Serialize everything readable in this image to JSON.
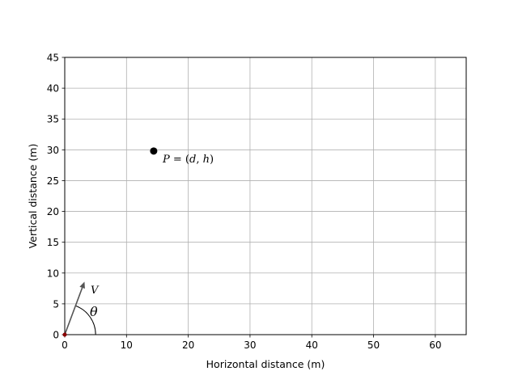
{
  "chart_data": {
    "type": "scatter",
    "title": "",
    "xlabel": "Horizontal distance (m)",
    "ylabel": "Vertical distance (m)",
    "xlim": [
      0,
      65
    ],
    "ylim": [
      0,
      45
    ],
    "xticks": [
      0,
      10,
      20,
      30,
      40,
      50,
      60
    ],
    "yticks": [
      0,
      5,
      10,
      15,
      20,
      25,
      30,
      35,
      40,
      45
    ],
    "grid": true,
    "points": [
      {
        "x": 14.4,
        "y": 29.8,
        "label": "P = (d, h)",
        "color": "#000000"
      },
      {
        "x": 0,
        "y": 0,
        "label": "",
        "color": "#8b0000"
      }
    ],
    "annotations": {
      "point_label": {
        "prefix": "P",
        "eq": " = (",
        "d": "d",
        "comma": ", ",
        "h": "h",
        "close": ")"
      },
      "velocity_label": "V",
      "angle_label": "θ",
      "velocity_vector": {
        "dx": 3.2,
        "dy": 8.6
      },
      "arc_radius_x": 5.0
    }
  },
  "colors": {
    "grid": "#b0b0b0",
    "axes": "#000000",
    "arrow": "#555555"
  }
}
